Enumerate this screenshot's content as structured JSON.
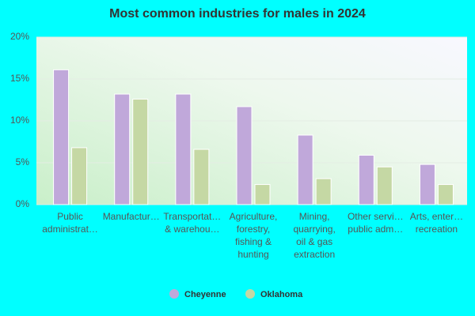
{
  "chart_data": {
    "type": "bar",
    "title": "Most common industries for males in 2024",
    "categories": [
      [
        "Public",
        "administrat…"
      ],
      [
        "Manufactur…"
      ],
      [
        "Transportat…",
        "& warehou…"
      ],
      [
        "Agriculture,",
        "forestry,",
        "fishing &",
        "hunting"
      ],
      [
        "Mining,",
        "quarrying,",
        "oil & gas",
        "extraction"
      ],
      [
        "Other servi…",
        "public adm…"
      ],
      [
        "Arts, enter…",
        "recreation"
      ]
    ],
    "series": [
      {
        "name": "Cheyenne",
        "color": "#c0a8da",
        "values": [
          16.1,
          13.2,
          13.2,
          11.7,
          8.3,
          5.9,
          4.8
        ]
      },
      {
        "name": "Oklahoma",
        "color": "#c5d8a4",
        "values": [
          6.8,
          12.6,
          6.6,
          2.4,
          3.1,
          4.5,
          2.4
        ]
      }
    ],
    "ylim": [
      0,
      20
    ],
    "yticks": [
      {
        "value": 0,
        "label": "0%"
      },
      {
        "value": 5,
        "label": "5%"
      },
      {
        "value": 10,
        "label": "10%"
      },
      {
        "value": 15,
        "label": "15%"
      },
      {
        "value": 20,
        "label": "20%"
      }
    ],
    "grid": true
  }
}
